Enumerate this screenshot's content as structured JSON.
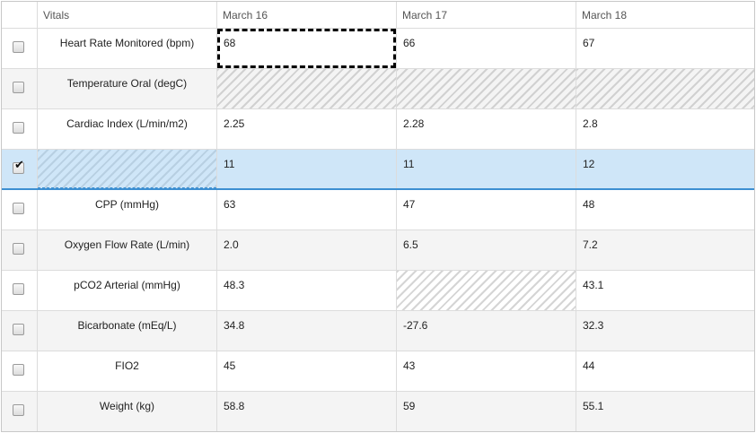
{
  "header": {
    "name_col": "Vitals",
    "dates": [
      "March 16",
      "March 17",
      "March 18"
    ]
  },
  "rows": [
    {
      "label": "Heart Rate Monitored (bpm)",
      "values": [
        "68",
        "66",
        "67"
      ],
      "checked": false
    },
    {
      "label": "Temperature Oral (degC)",
      "values": [
        "",
        "",
        ""
      ],
      "checked": false
    },
    {
      "label": "Cardiac Index (L/min/m2)",
      "values": [
        "2.25",
        "2.28",
        "2.8"
      ],
      "checked": false
    },
    {
      "label": "",
      "values": [
        "11",
        "11",
        "12"
      ],
      "checked": true
    },
    {
      "label": "CPP (mmHg)",
      "values": [
        "63",
        "47",
        "48"
      ],
      "checked": false
    },
    {
      "label": "Oxygen Flow Rate (L/min)",
      "values": [
        "2.0",
        "6.5",
        "7.2"
      ],
      "checked": false
    },
    {
      "label": "pCO2 Arterial (mmHg)",
      "values": [
        "48.3",
        "",
        "43.1"
      ],
      "checked": false
    },
    {
      "label": "Bicarbonate (mEq/L)",
      "values": [
        "34.8",
        "-27.6",
        "32.3"
      ],
      "checked": false
    },
    {
      "label": "FIO2",
      "values": [
        "45",
        "43",
        "44"
      ],
      "checked": false
    },
    {
      "label": "Weight (kg)",
      "values": [
        "58.8",
        "59",
        "55.1"
      ],
      "checked": false
    }
  ],
  "colors": {
    "selected_row": "#cfe6f8",
    "selected_border": "#3d8fd1",
    "alt_row": "#f4f4f4",
    "grid_line": "#dcdcdc"
  },
  "icons": {
    "check": "checkmark-icon"
  }
}
